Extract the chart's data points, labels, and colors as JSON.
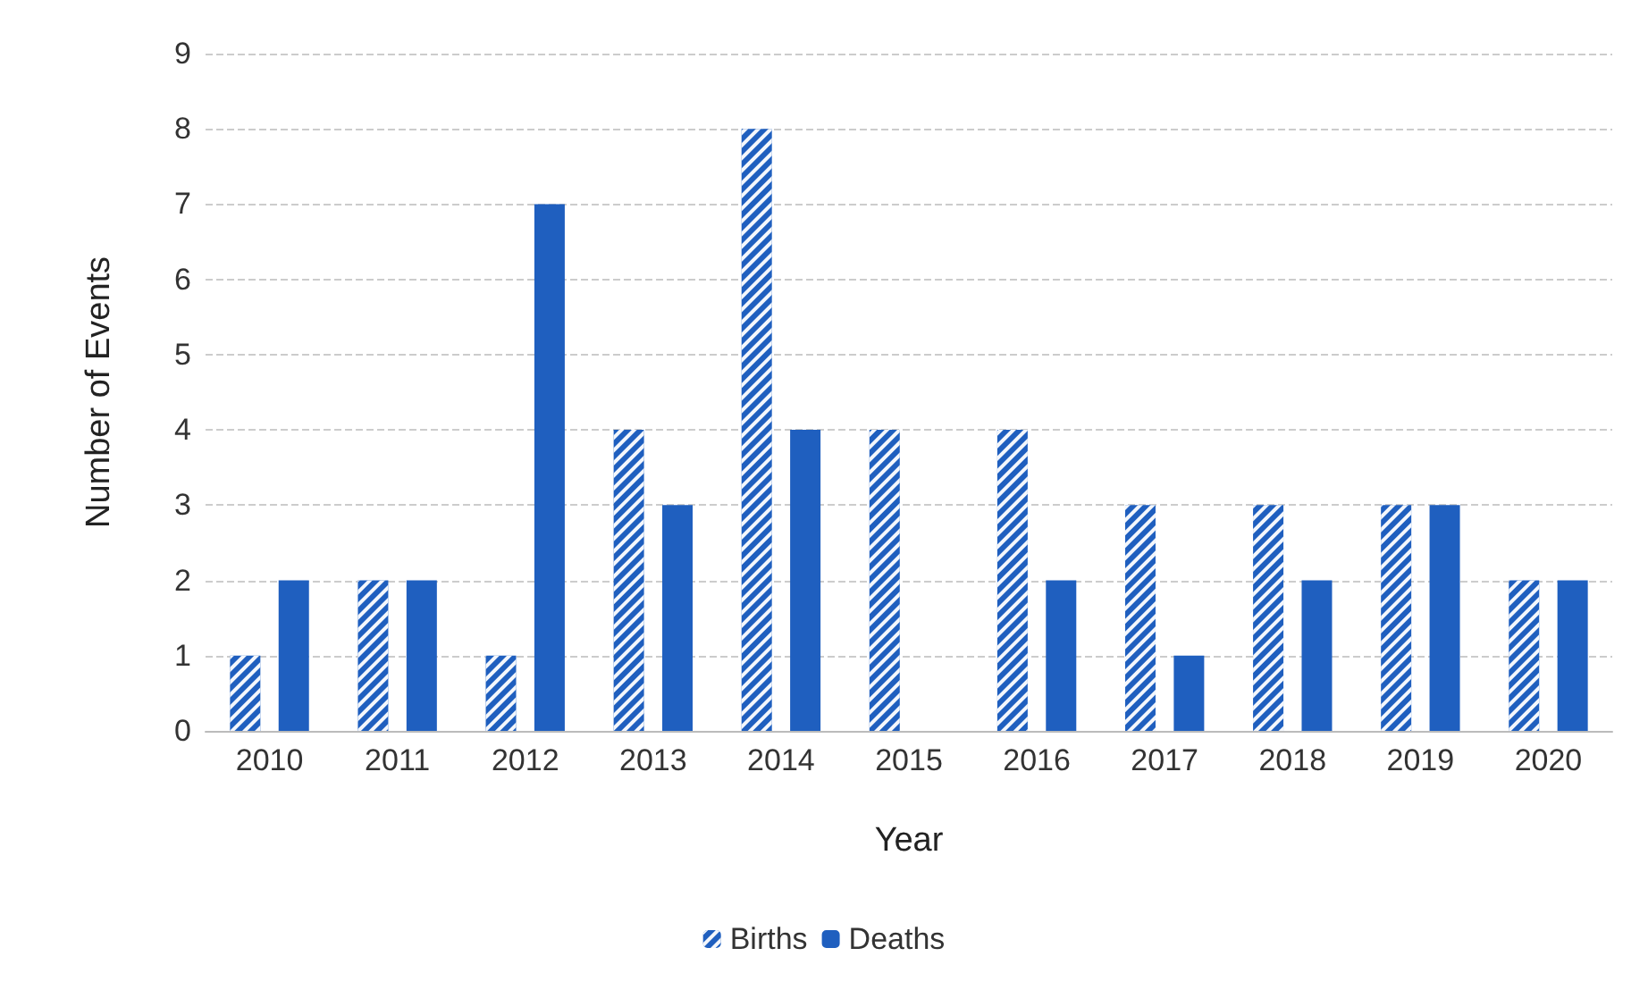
{
  "chart_data": {
    "type": "bar",
    "xlabel": "Year",
    "ylabel": "Number of Events",
    "categories": [
      "2010",
      "2011",
      "2012",
      "2013",
      "2014",
      "2015",
      "2016",
      "2017",
      "2018",
      "2019",
      "2020"
    ],
    "series": [
      {
        "name": "Births",
        "color": "#1f5fbf",
        "values": [
          1,
          2,
          1,
          4,
          8,
          4,
          4,
          3,
          3,
          3,
          2
        ]
      },
      {
        "name": "Deaths",
        "color": "#1f5fbf",
        "values": [
          2,
          2,
          7,
          3,
          4,
          0,
          2,
          1,
          2,
          3,
          2
        ]
      }
    ],
    "ylim": [
      0,
      9
    ],
    "yticks": [
      0,
      1,
      2,
      3,
      4,
      5,
      6,
      7,
      8,
      9
    ],
    "grid": "y",
    "legend": "bottom"
  }
}
